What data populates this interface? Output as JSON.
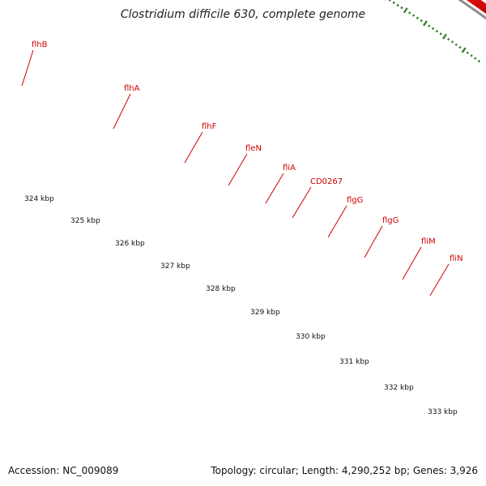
{
  "title": "Clostridium difficile 630, complete genome",
  "footer": {
    "accession": "Accession: NC_009089",
    "summary": "Topology: circular; Length: 4,290,252 bp; Genes: 3,926"
  },
  "colors": {
    "gene_label": "#cc0000",
    "tick": "#2a7a1c",
    "cds_red": "#ee1111",
    "feature_dark_green": "#2f8a2a",
    "feature_light_green": "#a6e835",
    "feature_pale_yellow": "#f0e6a0",
    "feature_orange": "#f08a10",
    "backbone": "#8a8a8a"
  },
  "gene_labels": [
    "flhB",
    "flhA",
    "flhF",
    "fleN",
    "fliA",
    "CD0267",
    "flgG",
    "flgG",
    "fliM",
    "fliN"
  ],
  "kbp_labels": [
    "324 kbp",
    "325 kbp",
    "326 kbp",
    "327 kbp",
    "328 kbp",
    "329 kbp",
    "330 kbp",
    "331 kbp",
    "332 kbp",
    "333 kbp"
  ]
}
